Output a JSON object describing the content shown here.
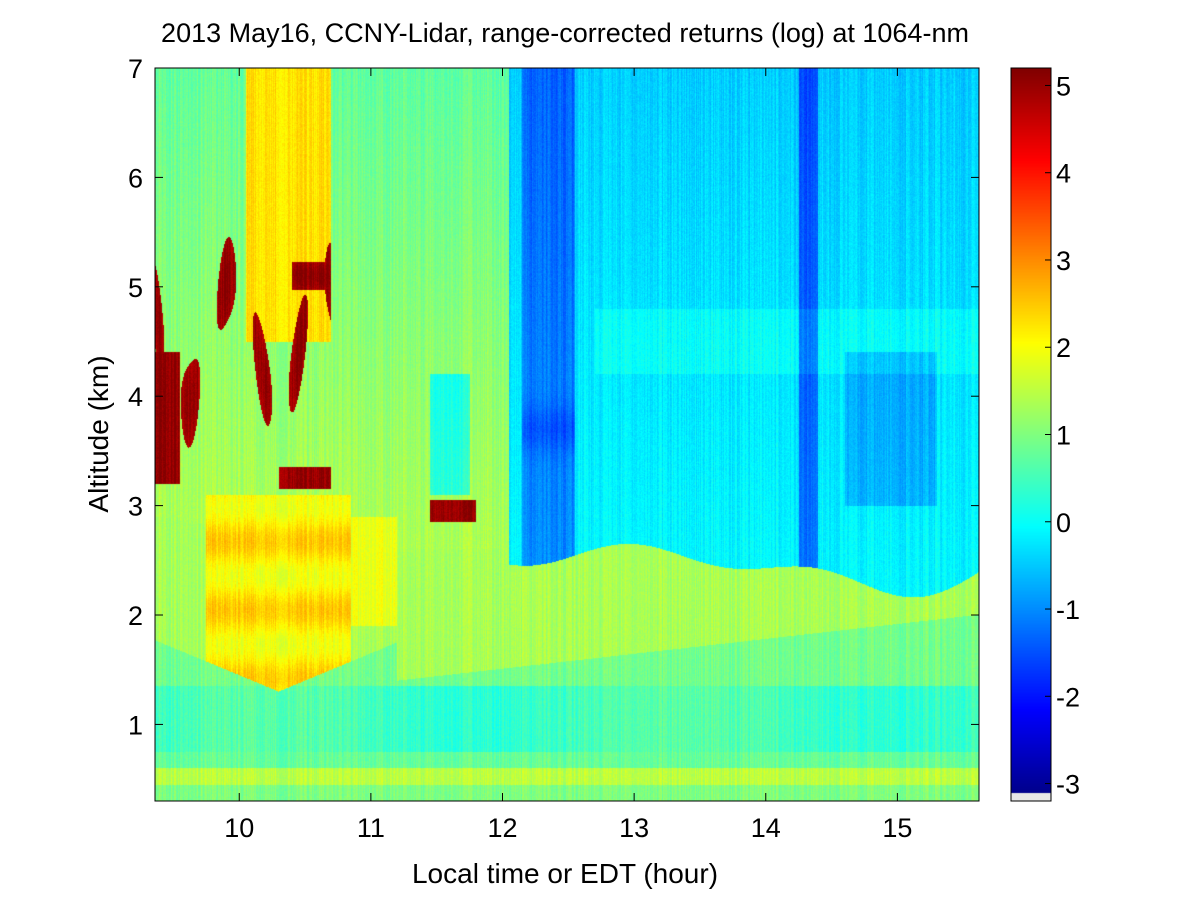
{
  "chart_data": {
    "type": "heatmap",
    "title": "2013 May16, CCNY-Lidar, range-corrected returns (log) at 1064-nm",
    "xlabel": "Local time or EDT (hour)",
    "ylabel": "Altitude (km)",
    "xlim": [
      9.36,
      15.62
    ],
    "ylim": [
      0.3,
      7
    ],
    "x_ticks": [
      "10",
      "11",
      "12",
      "13",
      "14",
      "15"
    ],
    "y_ticks": [
      "1",
      "2",
      "3",
      "4",
      "5",
      "6",
      "7"
    ],
    "colorbar": {
      "colormap": "jet",
      "range": [
        -3.2,
        5.2
      ],
      "ticks": [
        "-3",
        "-2",
        "-1",
        "0",
        "1",
        "2",
        "3",
        "4",
        "5"
      ]
    },
    "features": [
      {
        "description": "near-surface layer",
        "x_range": [
          9.36,
          15.62
        ],
        "y_range": [
          0.3,
          1.4
        ],
        "value": 0.9
      },
      {
        "description": "boundary layer aerosol",
        "x_range": [
          9.36,
          15.62
        ],
        "y_range": [
          1.4,
          2.5
        ],
        "value": 1.4
      },
      {
        "description": "residual aerosol layer",
        "x_range": [
          9.7,
          11.0
        ],
        "y_range": [
          1.3,
          3.0
        ],
        "value": 2.3
      },
      {
        "description": "lofted cloud",
        "x_range": [
          9.36,
          10.7
        ],
        "y_range": [
          3.2,
          5.5
        ],
        "value": 5.0
      },
      {
        "description": "small cloud",
        "x_range": [
          11.45,
          11.8
        ],
        "y_range": [
          2.85,
          3.05
        ],
        "value": 5.0
      },
      {
        "description": "clear free troposphere",
        "x_range": [
          12.0,
          15.62
        ],
        "y_range": [
          2.5,
          7.0
        ],
        "value": -0.6
      }
    ]
  }
}
